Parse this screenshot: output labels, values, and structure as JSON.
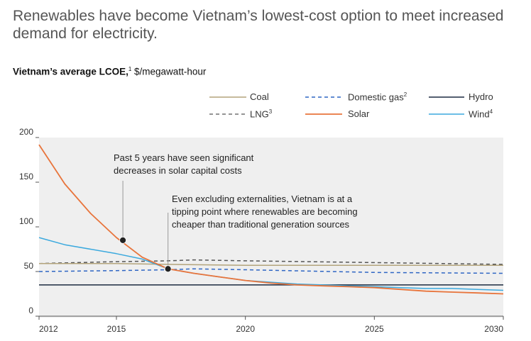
{
  "headline": "Renewables have become Vietnam’s lowest-cost option to meet increased demand for electricity.",
  "subtitle": {
    "bold": "Vietnam’s average LCOE,",
    "sup": "1",
    "unit": " $/megawatt-hour"
  },
  "legend": [
    {
      "label": "Coal",
      "sup": "",
      "color": "#b3a47c",
      "dash": "none"
    },
    {
      "label": "Domestic gas",
      "sup": "2",
      "color": "#2f66c4",
      "dash": "5,4"
    },
    {
      "label": "Hydro",
      "sup": "",
      "color": "#1b2a40",
      "dash": "none"
    },
    {
      "label": "LNG",
      "sup": "3",
      "color": "#555555",
      "dash": "5,4"
    },
    {
      "label": "Solar",
      "sup": "",
      "color": "#e8743b",
      "dash": "none"
    },
    {
      "label": "Wind",
      "sup": "4",
      "color": "#3ba9de",
      "dash": "none"
    }
  ],
  "chart_data": {
    "type": "line",
    "xlim": [
      2012,
      2030
    ],
    "ylim": [
      0,
      200
    ],
    "x_ticks": [
      "2012",
      "2015",
      "2020",
      "2025",
      "2030"
    ],
    "x_tick_values": [
      2012,
      2015,
      2020,
      2025,
      2030
    ],
    "y_ticks": [
      "0",
      "50",
      "100",
      "150",
      "200"
    ],
    "y_tick_values": [
      0,
      50,
      100,
      150,
      200
    ],
    "grid": false,
    "series": [
      {
        "name": "Coal",
        "color": "#b3a47c",
        "dash": "none",
        "x": [
          2012,
          2015,
          2017,
          2020,
          2025,
          2030
        ],
        "y": [
          59,
          59,
          58,
          57,
          57,
          57
        ]
      },
      {
        "name": "Domestic gas",
        "color": "#2f66c4",
        "dash": "5,4",
        "x": [
          2012,
          2015,
          2017,
          2018,
          2020,
          2025,
          2030
        ],
        "y": [
          50,
          51,
          52,
          53,
          52,
          49,
          48
        ]
      },
      {
        "name": "Hydro",
        "color": "#1b2a40",
        "dash": "none",
        "x": [
          2012,
          2030
        ],
        "y": [
          35,
          35
        ]
      },
      {
        "name": "LNG",
        "color": "#555555",
        "dash": "5,4",
        "x": [
          2012,
          2015,
          2017,
          2018,
          2020,
          2025,
          2030
        ],
        "y": [
          59,
          61,
          62,
          63,
          62,
          60,
          58
        ]
      },
      {
        "name": "Solar",
        "color": "#e8743b",
        "dash": "none",
        "x": [
          2012,
          2013,
          2014,
          2015,
          2016,
          2017,
          2018,
          2019,
          2020,
          2021,
          2022,
          2023,
          2024,
          2025,
          2026,
          2027,
          2028,
          2029,
          2030
        ],
        "y": [
          192,
          148,
          115,
          88,
          66,
          53,
          48,
          44,
          40,
          37,
          35,
          34,
          33,
          32,
          30,
          28,
          27,
          26,
          25
        ]
      },
      {
        "name": "Wind",
        "color": "#3ba9de",
        "dash": "none",
        "x": [
          2012,
          2013,
          2015,
          2016,
          2017,
          2018,
          2019,
          2020,
          2021,
          2022,
          2023,
          2024,
          2025,
          2026,
          2027,
          2028,
          2029,
          2030
        ],
        "y": [
          88,
          80,
          70,
          64,
          53,
          48,
          44,
          40,
          38,
          36,
          35,
          34,
          33,
          32,
          31,
          31,
          30,
          29
        ]
      }
    ],
    "markers": [
      {
        "x": 2015.25,
        "y": 85
      },
      {
        "x": 2017.0,
        "y": 53
      }
    ],
    "annotations": [
      {
        "lines": [
          "Past 5 years have seen significant",
          "decreases in solar capital costs"
        ],
        "x": 2015.25,
        "y": 85
      },
      {
        "lines": [
          "Even excluding externalities, Vietnam is at a",
          "tipping point where renewables are becoming",
          "cheaper than traditional generation sources"
        ],
        "x": 2017.0,
        "y": 53
      }
    ]
  }
}
